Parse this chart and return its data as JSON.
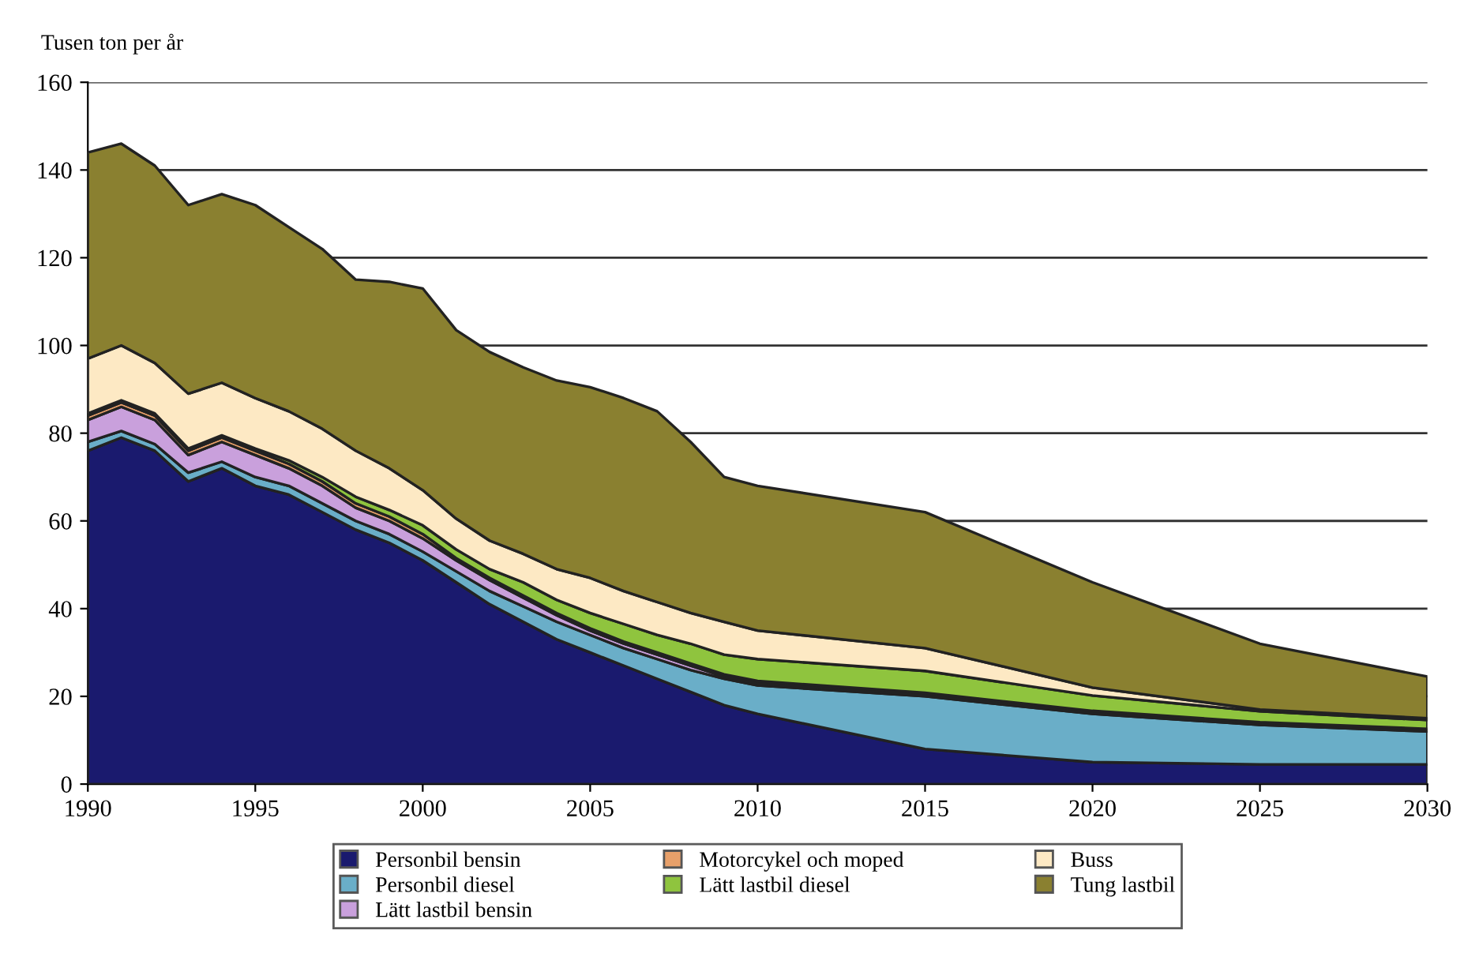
{
  "chart_data": {
    "type": "area",
    "stacked": true,
    "ylabel": "Tusen ton per år",
    "x": [
      1990,
      1991,
      1992,
      1993,
      1994,
      1995,
      1996,
      1997,
      1998,
      1999,
      2000,
      2001,
      2002,
      2003,
      2004,
      2005,
      2006,
      2007,
      2008,
      2009,
      2010,
      2015,
      2020,
      2025,
      2030
    ],
    "series": [
      {
        "name": "Personbil bensin",
        "color": "#1a1a6e",
        "values": [
          76,
          79,
          76,
          69,
          72,
          68,
          66,
          62,
          58,
          55,
          51,
          46,
          41,
          37,
          33,
          30,
          27,
          24,
          21,
          18,
          16,
          8,
          5,
          4.5,
          4.5
        ]
      },
      {
        "name": "Personbil diesel",
        "color": "#6aaec8",
        "values": [
          2,
          1.5,
          1.5,
          2,
          1.5,
          2,
          2,
          2,
          2,
          2,
          2,
          2.5,
          3,
          3.5,
          4,
          4,
          4,
          4.5,
          5,
          6,
          6.5,
          12,
          11,
          9,
          7.5
        ]
      },
      {
        "name": "Lätt lastbil bensin",
        "color": "#c9a0dc",
        "values": [
          5,
          5.5,
          5.5,
          4,
          4.5,
          5,
          4,
          4,
          3,
          3,
          3,
          2.5,
          2.5,
          2,
          1.5,
          1,
          1,
          1,
          1,
          0.5,
          0.5,
          0.3,
          0.2,
          0.1,
          0.1
        ]
      },
      {
        "name": "Motorcykel och moped",
        "color": "#e8a06a",
        "values": [
          1,
          1,
          1,
          1,
          1,
          1,
          1,
          1,
          1,
          1,
          1,
          0.5,
          0.5,
          0.5,
          0.5,
          0.5,
          0.5,
          0.5,
          0.5,
          0.5,
          0.5,
          0.5,
          0.5,
          0.5,
          0.5
        ]
      },
      {
        "name": "Lätt lastbil diesel",
        "color": "#8fc43e",
        "values": [
          0.5,
          0.5,
          0.5,
          0.5,
          0.5,
          0.5,
          0.8,
          1,
          1.5,
          1.5,
          2,
          2,
          2,
          3,
          3,
          3.5,
          4,
          4,
          4.5,
          4.5,
          5,
          5,
          3.5,
          2.5,
          2
        ]
      },
      {
        "name": "Buss",
        "color": "#fde9c4",
        "values": [
          12.5,
          12.5,
          11.5,
          12.5,
          12,
          11.5,
          11.2,
          11,
          10.5,
          9.5,
          8,
          7,
          6.5,
          6.5,
          7,
          8,
          7.5,
          7.5,
          7,
          7.5,
          6.5,
          5.2,
          1.8,
          0.4,
          0.4
        ]
      },
      {
        "name": "Tung lastbil",
        "color": "#8a8030",
        "values": [
          47,
          46,
          45,
          43,
          43,
          44,
          42,
          41,
          39,
          42.5,
          46,
          43,
          43,
          42.5,
          43,
          43.5,
          44,
          43.5,
          39,
          33,
          33,
          31,
          24,
          15,
          9.5
        ]
      }
    ],
    "xlim": [
      1990,
      2030
    ],
    "xticks": [
      1990,
      1995,
      2000,
      2005,
      2010,
      2015,
      2020,
      2025,
      2030
    ],
    "ylim": [
      0,
      160
    ],
    "yticks": [
      0,
      20,
      40,
      60,
      80,
      100,
      120,
      140,
      160
    ],
    "grid": "y",
    "legend": "bottom"
  }
}
